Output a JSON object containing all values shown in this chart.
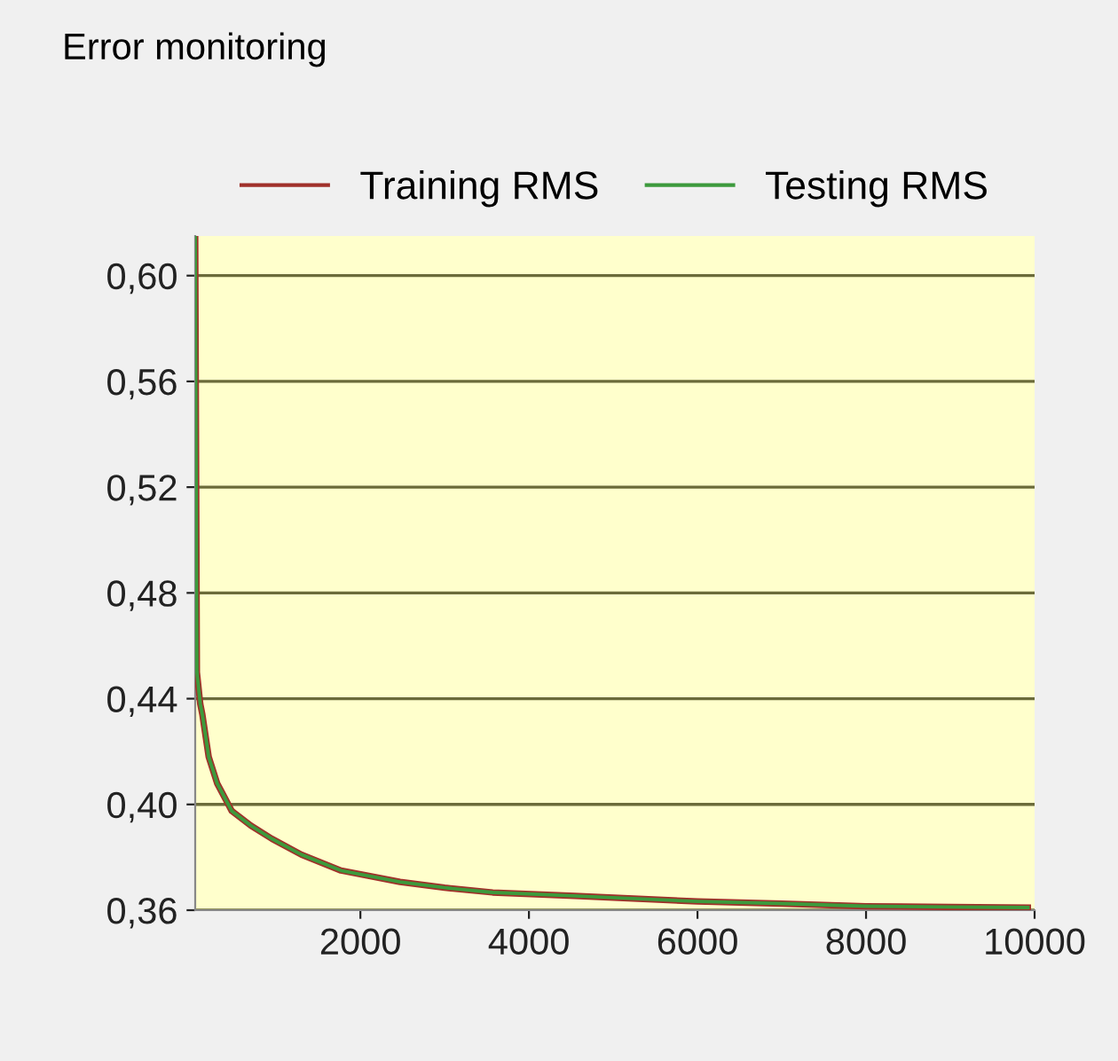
{
  "chart_data": {
    "type": "line",
    "title": "Error monitoring",
    "x": [
      40,
      60,
      100,
      125,
      200,
      300,
      474,
      700,
      950,
      1300,
      1770,
      2470,
      3000,
      3570,
      4540,
      6000,
      7000,
      8000,
      9000,
      9920
    ],
    "series": [
      {
        "name": "Training RMS",
        "color": "#a0302a",
        "values": [
          0.615,
          0.45,
          0.438,
          0.434,
          0.418,
          0.408,
          0.3975,
          0.392,
          0.387,
          0.381,
          0.375,
          0.3707,
          0.3685,
          0.3667,
          0.3654,
          0.3633,
          0.3625,
          0.3615,
          0.3612,
          0.361
        ]
      },
      {
        "name": "Testing RMS",
        "color": "#3c9a3c",
        "values": [
          0.615,
          0.45,
          0.438,
          0.434,
          0.418,
          0.408,
          0.3975,
          0.392,
          0.387,
          0.381,
          0.375,
          0.3707,
          0.3685,
          0.3667,
          0.3654,
          0.3633,
          0.3625,
          0.3615,
          0.3612,
          0.361
        ]
      }
    ],
    "xlim": [
      40,
      10000
    ],
    "xticks": [
      2000,
      4000,
      6000,
      8000,
      10000
    ],
    "ylim": [
      0.36,
      0.615
    ],
    "yticks": [
      {
        "value": 0.36,
        "label": "0,36"
      },
      {
        "value": 0.4,
        "label": "0,40"
      },
      {
        "value": 0.44,
        "label": "0,44"
      },
      {
        "value": 0.48,
        "label": "0,48"
      },
      {
        "value": 0.52,
        "label": "0,52"
      },
      {
        "value": 0.56,
        "label": "0,56"
      },
      {
        "value": 0.6,
        "label": "0,60"
      }
    ],
    "grid": "y",
    "legend": "top",
    "marker": "none",
    "line_style": "solid"
  }
}
